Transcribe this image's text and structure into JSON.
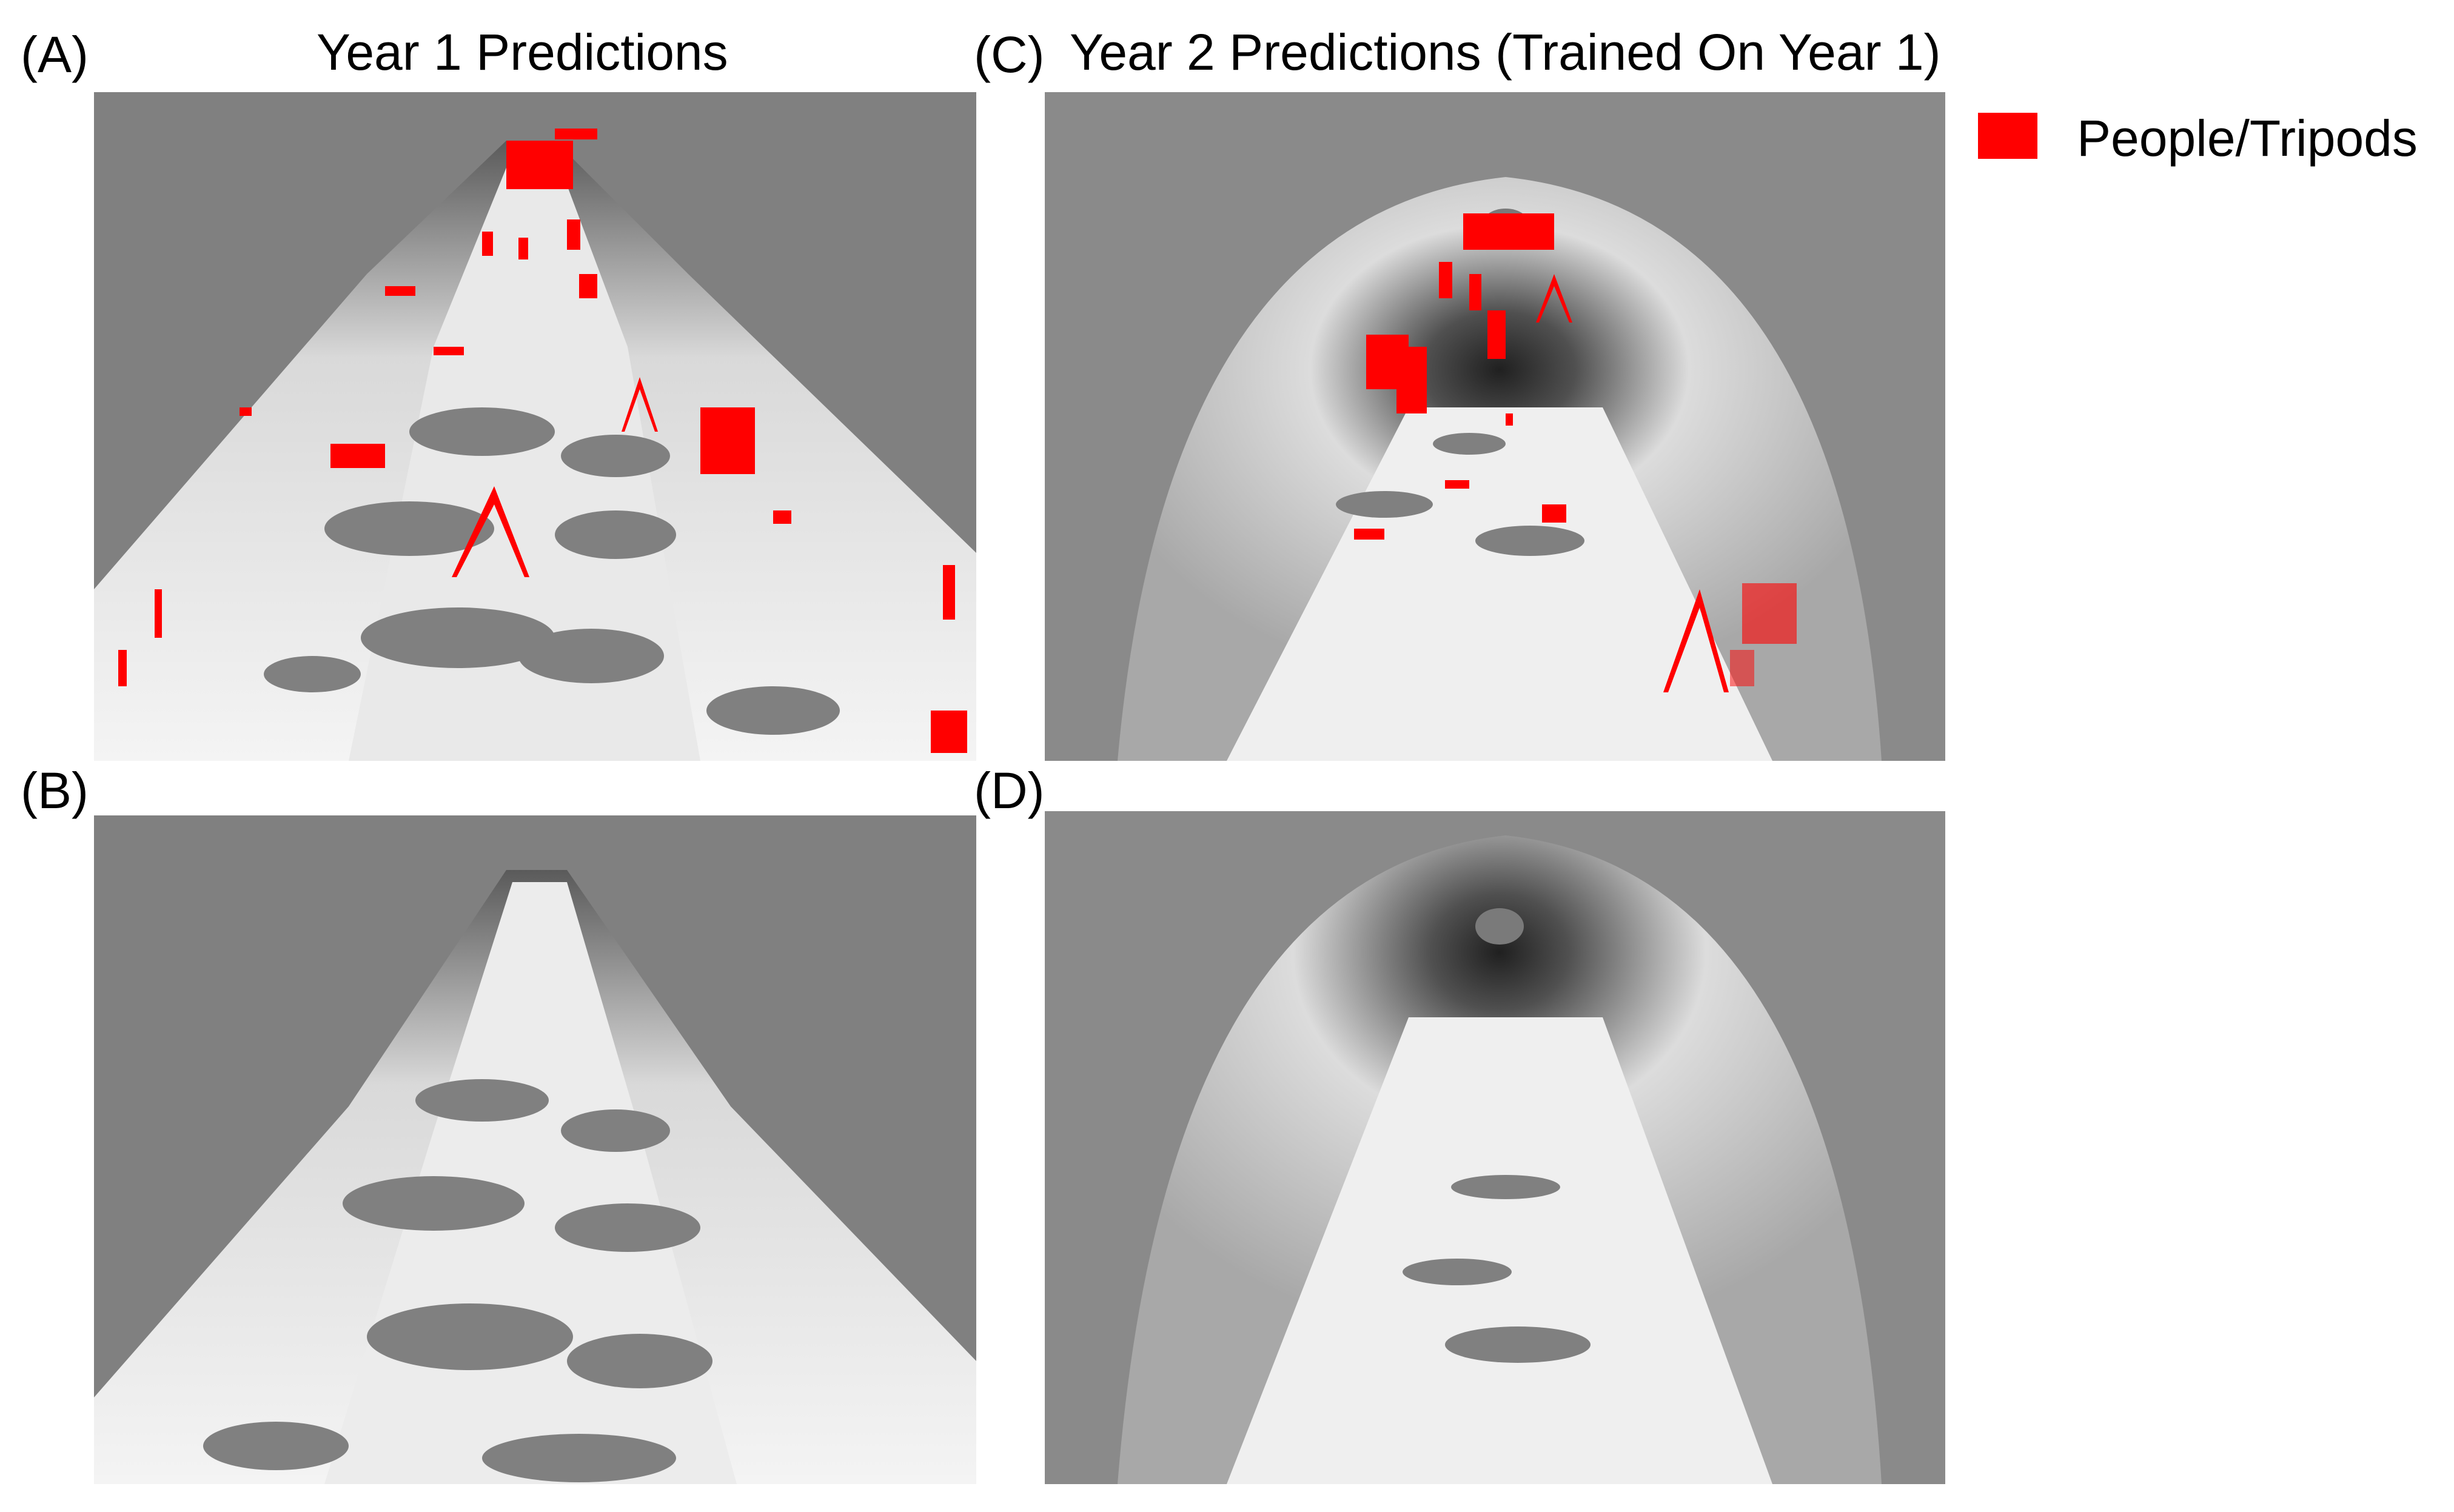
{
  "panels": {
    "a": {
      "label": "(A)",
      "title": "Year 1 Predictions"
    },
    "b": {
      "label": "(B)"
    },
    "c": {
      "label": "(C)",
      "title": "Year 2 Predictions (Trained On Year 1)"
    },
    "d": {
      "label": "(D)"
    }
  },
  "legend": {
    "text": "People/Tripods",
    "color": "#ff0000"
  },
  "colors": {
    "background_gray": "#808080",
    "surface": "#f2f2f2",
    "highlight": "#ff0000"
  }
}
